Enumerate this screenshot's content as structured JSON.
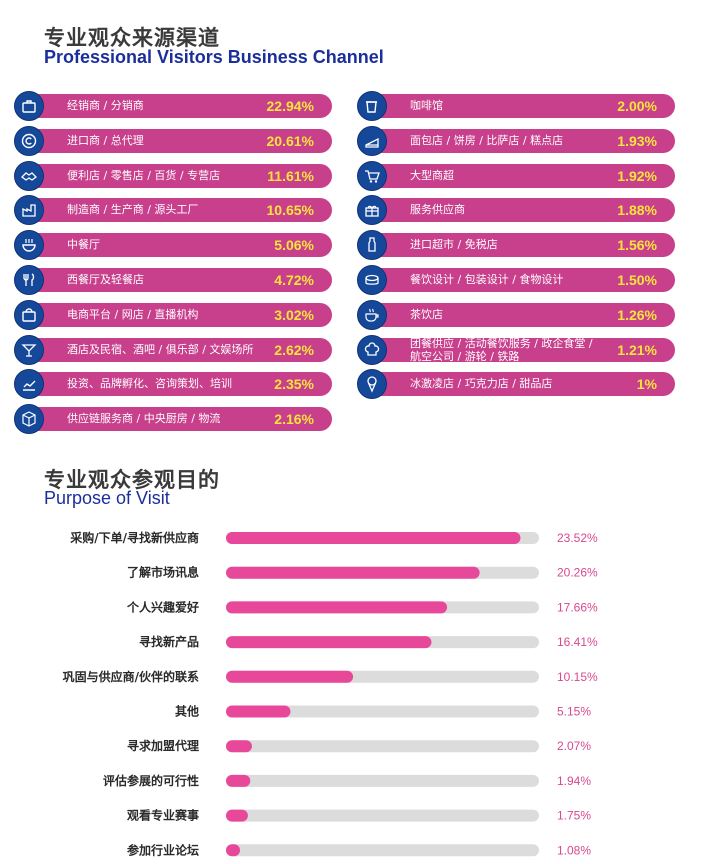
{
  "section1": {
    "title_cn": "专业观众来源渠道",
    "title_en": "Professional Visitors Business Channel"
  },
  "section2": {
    "title_cn": "专业观众参观目的",
    "title_en": "Purpose of Visit"
  },
  "colors": {
    "pill": "#c83f8c",
    "icon_bg": "#16489a",
    "percent_text": "#f9e43c",
    "bar": "#e8489a",
    "track": "#dcdcdc",
    "value_text": "#d9488f"
  },
  "channels_left": [
    {
      "label": "经销商 / 分销商",
      "value": "22.94%",
      "icon": "briefcase-icon"
    },
    {
      "label": "进口商 / 总代理",
      "value": "20.61%",
      "icon": "copyright-icon"
    },
    {
      "label": "便利店 / 零售店 / 百货 / 专营店",
      "value": "11.61%",
      "icon": "handshake-icon"
    },
    {
      "label": "制造商 / 生产商 / 源头工厂",
      "value": "10.65%",
      "icon": "factory-icon"
    },
    {
      "label": "中餐厅",
      "value": "5.06%",
      "icon": "bowl-icon"
    },
    {
      "label": "西餐厅及轻餐店",
      "value": "4.72%",
      "icon": "fork-knife-icon"
    },
    {
      "label": "电商平台 / 网店 / 直播机构",
      "value": "3.02%",
      "icon": "shopping-bag-icon"
    },
    {
      "label": "酒店及民宿、酒吧 / 俱乐部 / 文娱场所",
      "value": "2.62%",
      "icon": "cocktail-icon"
    },
    {
      "label": "投资、品牌孵化、咨询策划、培训",
      "value": "2.35%",
      "icon": "growth-chart-icon"
    },
    {
      "label": "供应链服务商 / 中央厨房 / 物流",
      "value": "2.16%",
      "icon": "package-icon"
    }
  ],
  "channels_right": [
    {
      "label": "咖啡馆",
      "value": "2.00%",
      "icon": "coffee-cup-icon"
    },
    {
      "label": "面包店 / 饼房 / 比萨店 / 糕点店",
      "value": "1.93%",
      "icon": "cake-slice-icon"
    },
    {
      "label": "大型商超",
      "value": "1.92%",
      "icon": "shopping-cart-icon"
    },
    {
      "label": "服务供应商",
      "value": "1.88%",
      "icon": "gift-icon"
    },
    {
      "label": "进口超市 / 免税店",
      "value": "1.56%",
      "icon": "bottle-icon"
    },
    {
      "label": "餐饮设计 / 包装设计 / 食物设计",
      "value": "1.50%",
      "icon": "dish-icon"
    },
    {
      "label": "茶饮店",
      "value": "1.26%",
      "icon": "tea-cup-icon"
    },
    {
      "label": "团餐供应 / 活动餐饮服务 / 政企食堂 / 航空公司 / 游轮 / 铁路",
      "value": "1.21%",
      "icon": "chef-hat-icon"
    },
    {
      "label": "冰激凌店 / 巧克力店 / 甜品店",
      "value": "1%",
      "icon": "ice-cream-icon"
    }
  ],
  "chart_data": {
    "type": "bar",
    "orientation": "horizontal",
    "categories": [
      "采购/下单/寻找新供应商",
      "了解市场讯息",
      "个人兴趣爱好",
      "寻找新产品",
      "巩固与供应商/伙伴的联系",
      "其他",
      "寻求加盟代理",
      "评估参展的可行性",
      "观看专业赛事",
      "参加行业论坛"
    ],
    "values": [
      23.52,
      20.26,
      17.66,
      16.41,
      10.15,
      5.15,
      2.07,
      1.94,
      1.75,
      1.08
    ],
    "value_labels": [
      "23.52%",
      "20.26%",
      "17.66%",
      "16.41%",
      "10.15%",
      "5.15%",
      "2.07%",
      "1.94%",
      "1.75%",
      "1.08%"
    ],
    "xlim": [
      0,
      25
    ],
    "grid": false,
    "legend": "none"
  }
}
